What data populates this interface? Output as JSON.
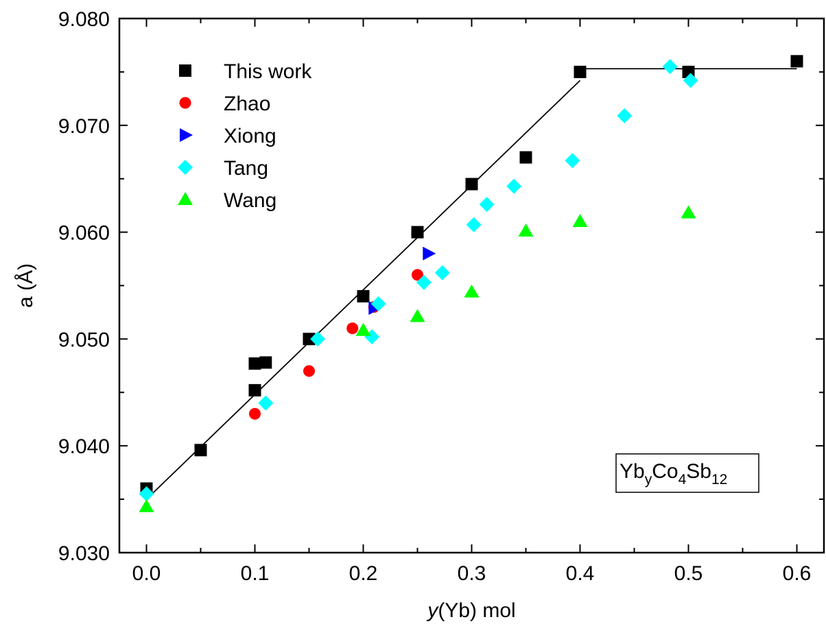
{
  "chart_data": {
    "type": "scatter",
    "title": "",
    "xlabel_italic": "y",
    "xlabel_rest": "(Yb) mol",
    "ylabel": "a (Å)",
    "xlim": [
      -0.025,
      0.625
    ],
    "ylim": [
      9.03,
      9.08
    ],
    "xticks": [
      0.0,
      0.1,
      0.2,
      0.3,
      0.4,
      0.5,
      0.6
    ],
    "xtick_labels": [
      "0.0",
      "0.1",
      "0.2",
      "0.3",
      "0.4",
      "0.5",
      "0.6"
    ],
    "yticks": [
      9.03,
      9.04,
      9.05,
      9.06,
      9.07,
      9.08
    ],
    "ytick_labels": [
      "9.030",
      "9.040",
      "9.050",
      "9.060",
      "9.070",
      "9.080"
    ],
    "grid": false,
    "legend_position": "top-left",
    "annotation": {
      "base1": "Yb",
      "sub1": "y",
      "base2": "Co",
      "sub2": "4",
      "base3": "Sb",
      "sub3": "12"
    },
    "series": [
      {
        "name": "This work",
        "marker": "square",
        "color": "#000000",
        "points": [
          [
            0.0,
            9.036
          ],
          [
            0.05,
            9.0396
          ],
          [
            0.1,
            9.0452
          ],
          [
            0.1,
            9.0477
          ],
          [
            0.11,
            9.0478
          ],
          [
            0.15,
            9.05
          ],
          [
            0.2,
            9.054
          ],
          [
            0.25,
            9.06
          ],
          [
            0.3,
            9.0645
          ],
          [
            0.35,
            9.067
          ],
          [
            0.4,
            9.075
          ],
          [
            0.5,
            9.075
          ],
          [
            0.6,
            9.076
          ]
        ]
      },
      {
        "name": "Zhao",
        "marker": "circle",
        "color": "#ff0000",
        "points": [
          [
            0.1,
            9.043
          ],
          [
            0.15,
            9.047
          ],
          [
            0.19,
            9.051
          ],
          [
            0.21,
            9.053
          ],
          [
            0.25,
            9.056
          ]
        ]
      },
      {
        "name": "Xiong",
        "marker": "triangle-right",
        "color": "#0000ff",
        "points": [
          [
            0.21,
            9.0529
          ],
          [
            0.26,
            9.058
          ]
        ]
      },
      {
        "name": "Tang",
        "marker": "diamond",
        "color": "#00ffff",
        "points": [
          [
            0.0,
            9.0355
          ],
          [
            0.11,
            9.044
          ],
          [
            0.158,
            9.05
          ],
          [
            0.208,
            9.0502
          ],
          [
            0.214,
            9.0533
          ],
          [
            0.256,
            9.0553
          ],
          [
            0.273,
            9.0562
          ],
          [
            0.302,
            9.0607
          ],
          [
            0.314,
            9.0626
          ],
          [
            0.339,
            9.0643
          ],
          [
            0.393,
            9.0667
          ],
          [
            0.441,
            9.0709
          ],
          [
            0.483,
            9.0755
          ],
          [
            0.502,
            9.0742
          ]
        ]
      },
      {
        "name": "Wang",
        "marker": "triangle-up",
        "color": "#00ff00",
        "points": [
          [
            0.0,
            9.0343
          ],
          [
            0.2,
            9.0508
          ],
          [
            0.25,
            9.0521
          ],
          [
            0.3,
            9.0544
          ],
          [
            0.35,
            9.0601
          ],
          [
            0.4,
            9.061
          ],
          [
            0.5,
            9.0618
          ]
        ]
      }
    ],
    "fit_lines": [
      {
        "x": [
          0.0,
          0.4
        ],
        "y": [
          9.035,
          9.0742
        ]
      },
      {
        "x": [
          0.405,
          0.6
        ],
        "y": [
          9.0753,
          9.0753
        ]
      }
    ]
  }
}
